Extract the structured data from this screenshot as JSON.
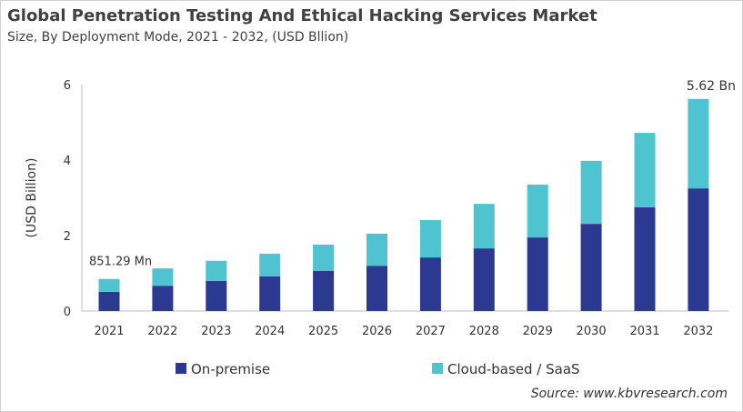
{
  "chart_data": {
    "type": "bar",
    "stacked": true,
    "title": "Global Penetration Testing And Ethical Hacking Services Market",
    "subtitle": "Size, By Deployment Mode, 2021 - 2032, (USD Bllion)",
    "ylabel": "(USD Billion)",
    "xlabel": "",
    "ylim": [
      0,
      6
    ],
    "yticks": [
      0,
      2,
      4,
      6
    ],
    "grid": false,
    "legend_position": "bottom",
    "categories": [
      "2021",
      "2022",
      "2023",
      "2024",
      "2025",
      "2026",
      "2027",
      "2028",
      "2029",
      "2030",
      "2031",
      "2032"
    ],
    "series": [
      {
        "name": "On-premise",
        "color": "#2b3990",
        "values": [
          0.51,
          0.67,
          0.8,
          0.92,
          1.06,
          1.2,
          1.42,
          1.66,
          1.95,
          2.31,
          2.75,
          3.25
        ]
      },
      {
        "name": "Cloud-based / SaaS",
        "color": "#4fc3d0",
        "values": [
          0.34,
          0.46,
          0.53,
          0.6,
          0.7,
          0.85,
          0.99,
          1.18,
          1.4,
          1.67,
          1.97,
          2.37
        ]
      }
    ],
    "annotations": [
      {
        "category": "2021",
        "text": "851.29 Mn"
      },
      {
        "category": "2032",
        "text": "5.62 Bn"
      }
    ]
  },
  "source": "Source: www.kbvresearch.com"
}
